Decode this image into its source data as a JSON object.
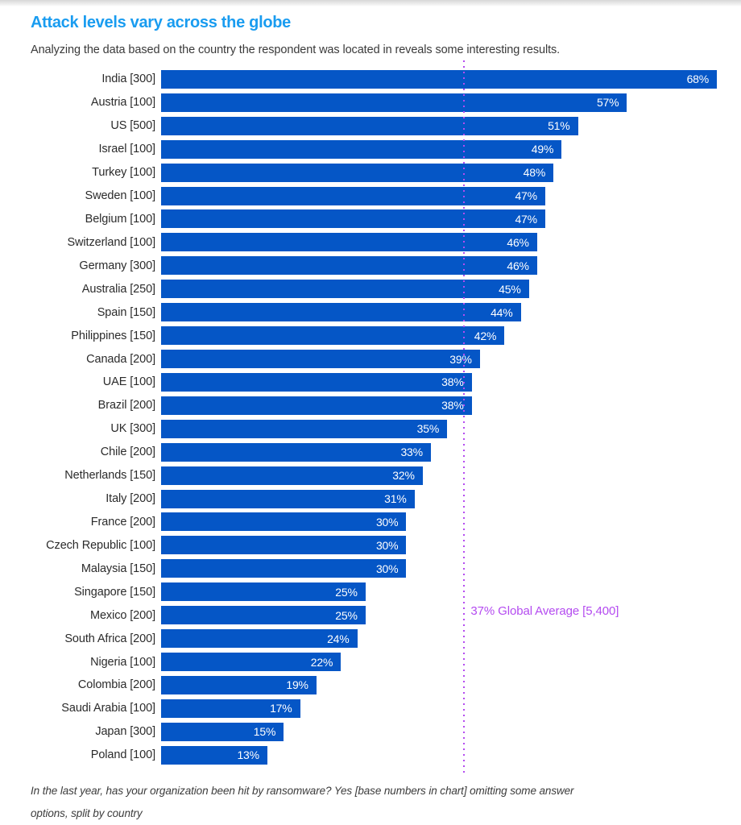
{
  "page": {
    "title": "Attack levels vary across the globe",
    "subtitle": "Analyzing the data based on the country the respondent was located in reveals some interesting results.",
    "footnote": {
      "line1": "In the last year, has your organization been hit by ransomware? Yes [base numbers in chart] omitting some answer",
      "line2": "options, split by country"
    },
    "colors": {
      "title": "#199CF0",
      "bar": "#0556C6",
      "bar_value_text": "#FFFFFF",
      "average": "#B44BF0",
      "text": "#2D2D2D"
    }
  },
  "chart_data": {
    "type": "bar",
    "orientation": "horizontal",
    "title": "Attack levels vary across the globe",
    "categories": [
      "India [300]",
      "Austria [100]",
      "US [500]",
      "Israel [100]",
      "Turkey [100]",
      "Sweden [100]",
      "Belgium [100]",
      "Switzerland [100]",
      "Germany [300]",
      "Australia [250]",
      "Spain [150]",
      "Philippines [150]",
      "Canada [200]",
      "UAE [100]",
      "Brazil [200]",
      "UK [300]",
      "Chile [200]",
      "Netherlands [150]",
      "Italy [200]",
      "France [200]",
      "Czech Republic [100]",
      "Malaysia [150]",
      "Singapore [150]",
      "Mexico [200]",
      "South Africa [200]",
      "Nigeria [100]",
      "Colombia [200]",
      "Saudi Arabia [100]",
      "Japan [300]",
      "Poland [100]"
    ],
    "values": [
      68,
      57,
      51,
      49,
      48,
      47,
      47,
      46,
      46,
      45,
      44,
      42,
      39,
      38,
      38,
      35,
      33,
      32,
      31,
      30,
      30,
      30,
      25,
      25,
      24,
      22,
      19,
      17,
      15,
      13
    ],
    "value_suffix": "%",
    "xlabel": "",
    "ylabel": "",
    "xlim": [
      0,
      68
    ],
    "grid": "off",
    "legend": "none",
    "average_line": {
      "value": 37,
      "label": "37% Global Average [5,400]"
    }
  }
}
